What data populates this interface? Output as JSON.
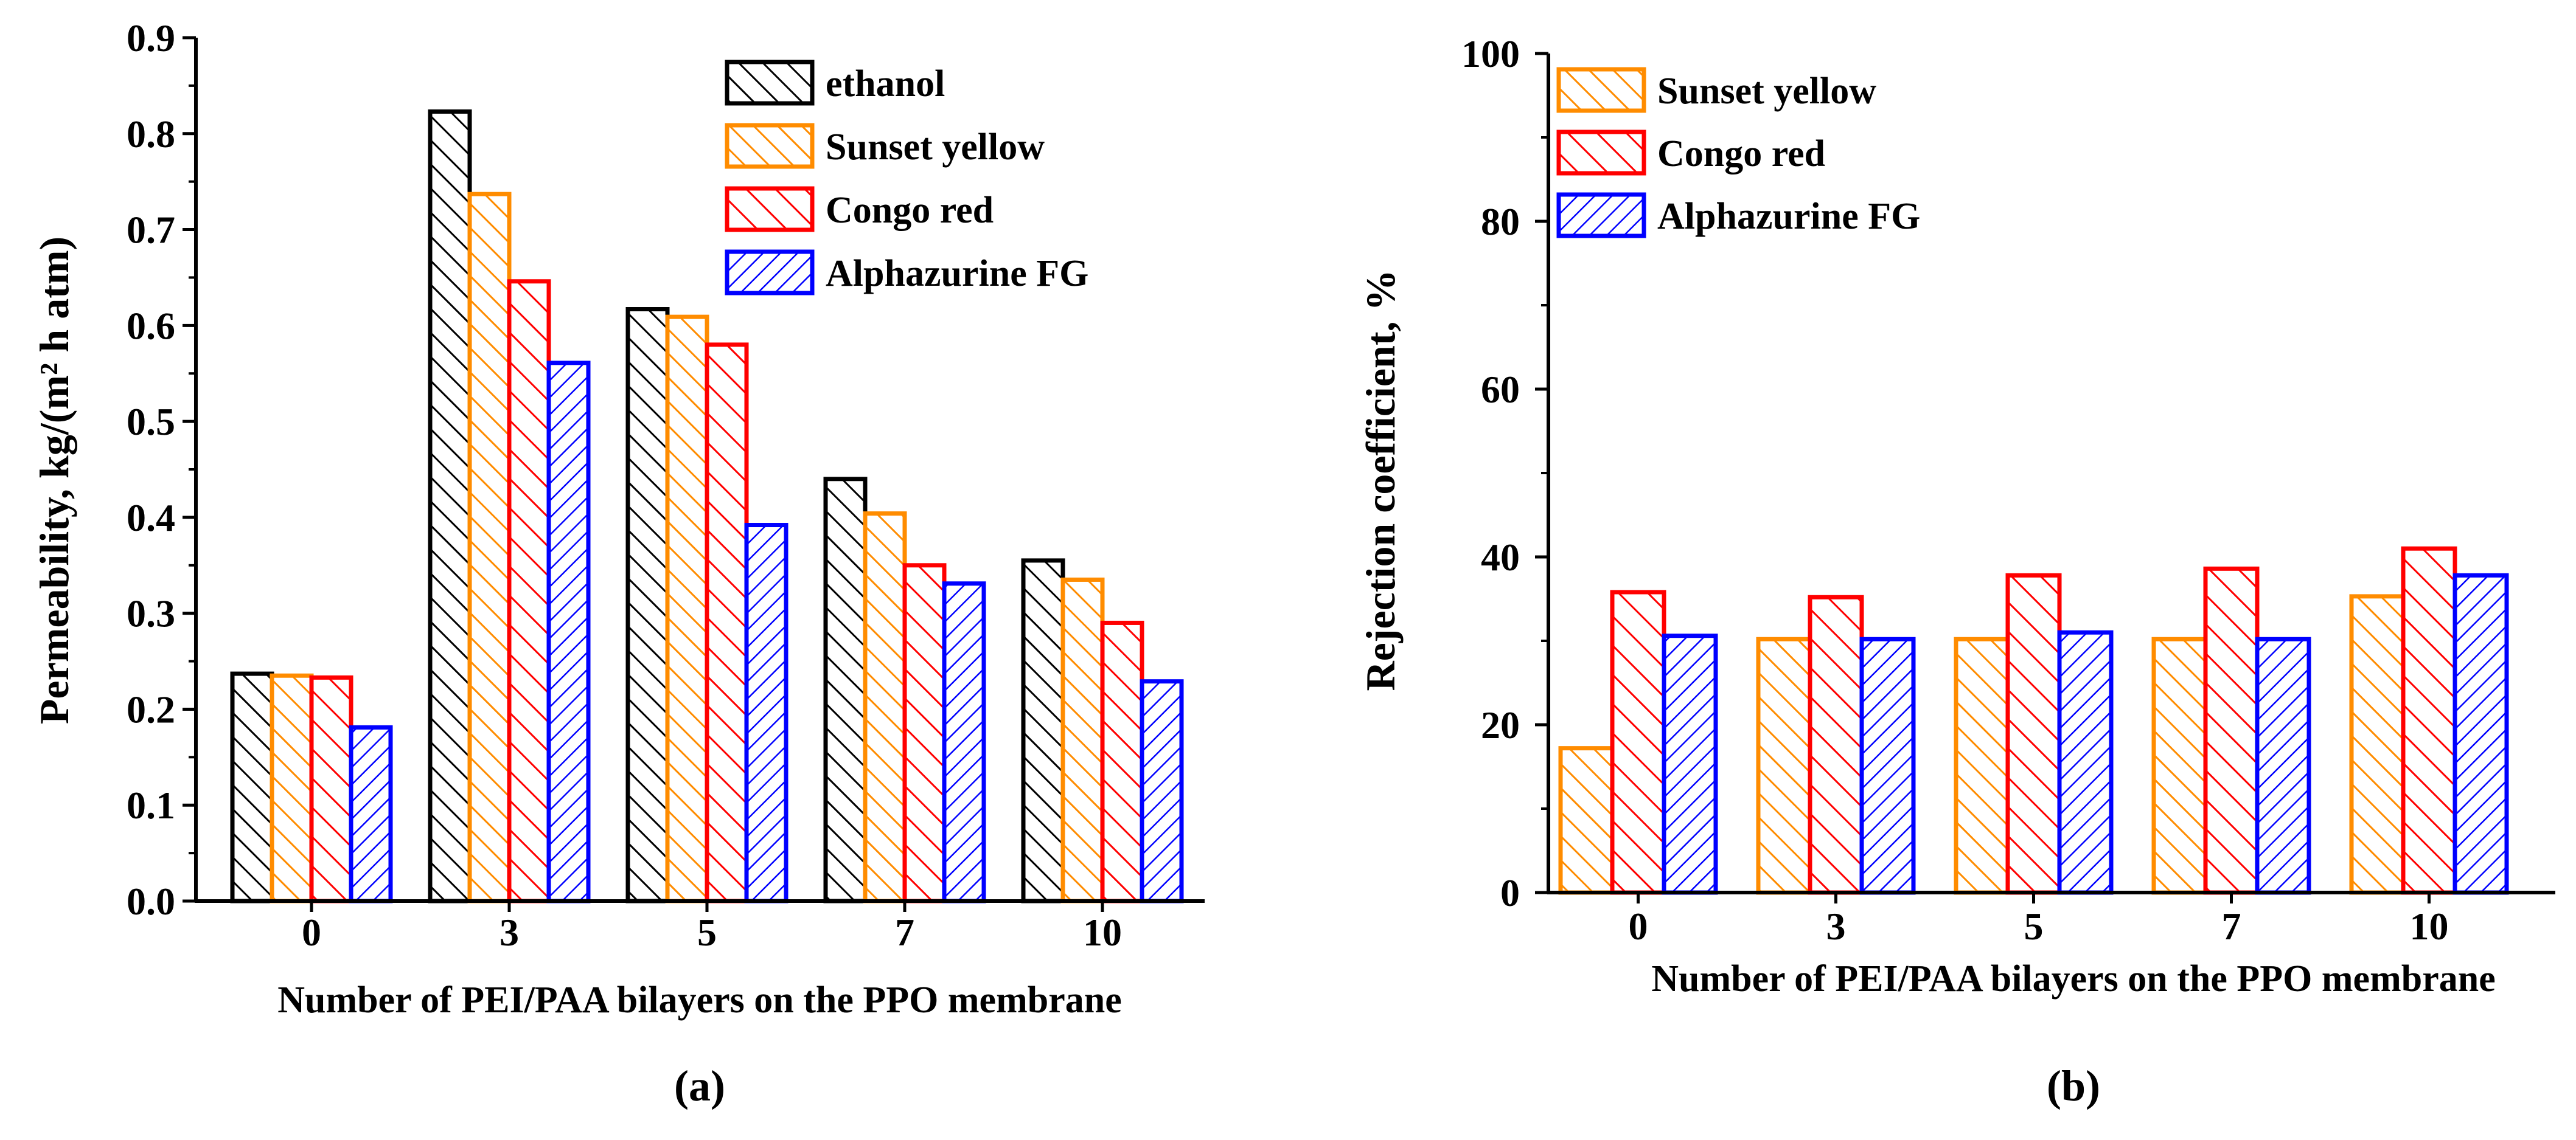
{
  "colors": {
    "ethanol": "#000000",
    "sunset_yellow": "#ff8c00",
    "congo_red": "#ff0000",
    "alphazurine": "#0000ff"
  },
  "chart_data": [
    {
      "type": "bar",
      "panel_label": "(a)",
      "xlabel": "Number of PEI/PAA bilayers on the PPO membrane",
      "ylabel": "Permeability, kg/(m² h atm)",
      "ylim": [
        0,
        0.9
      ],
      "yticks": [
        "0.0",
        "0.1",
        "0.2",
        "0.3",
        "0.4",
        "0.5",
        "0.6",
        "0.7",
        "0.8",
        "0.9"
      ],
      "categories": [
        "0",
        "3",
        "5",
        "7",
        "10"
      ],
      "legend_position": "top-right",
      "series": [
        {
          "name": "ethanol",
          "values": [
            0.237,
            0.823,
            0.617,
            0.44,
            0.355
          ]
        },
        {
          "name": "Sunset yellow",
          "values": [
            0.235,
            0.737,
            0.609,
            0.404,
            0.335
          ]
        },
        {
          "name": "Congo red",
          "values": [
            0.233,
            0.646,
            0.58,
            0.35,
            0.29
          ]
        },
        {
          "name": "Alphazurine FG",
          "values": [
            0.181,
            0.561,
            0.392,
            0.331,
            0.229
          ]
        }
      ]
    },
    {
      "type": "bar",
      "panel_label": "(b)",
      "xlabel": "Number of PEI/PAA bilayers on the PPO membrane",
      "ylabel": "Rejection coefficient, %",
      "ylim": [
        0,
        100
      ],
      "yticks": [
        "0",
        "20",
        "40",
        "60",
        "80",
        "100"
      ],
      "categories": [
        "0",
        "3",
        "5",
        "7",
        "10"
      ],
      "legend_position": "top-left",
      "series": [
        {
          "name": "Sunset yellow",
          "values": [
            17.2,
            30.2,
            30.2,
            30.2,
            35.3
          ]
        },
        {
          "name": "Congo red",
          "values": [
            35.8,
            35.2,
            37.8,
            38.6,
            41.0
          ]
        },
        {
          "name": "Alphazurine FG",
          "values": [
            30.6,
            30.2,
            31.0,
            30.2,
            37.8
          ]
        }
      ]
    }
  ]
}
